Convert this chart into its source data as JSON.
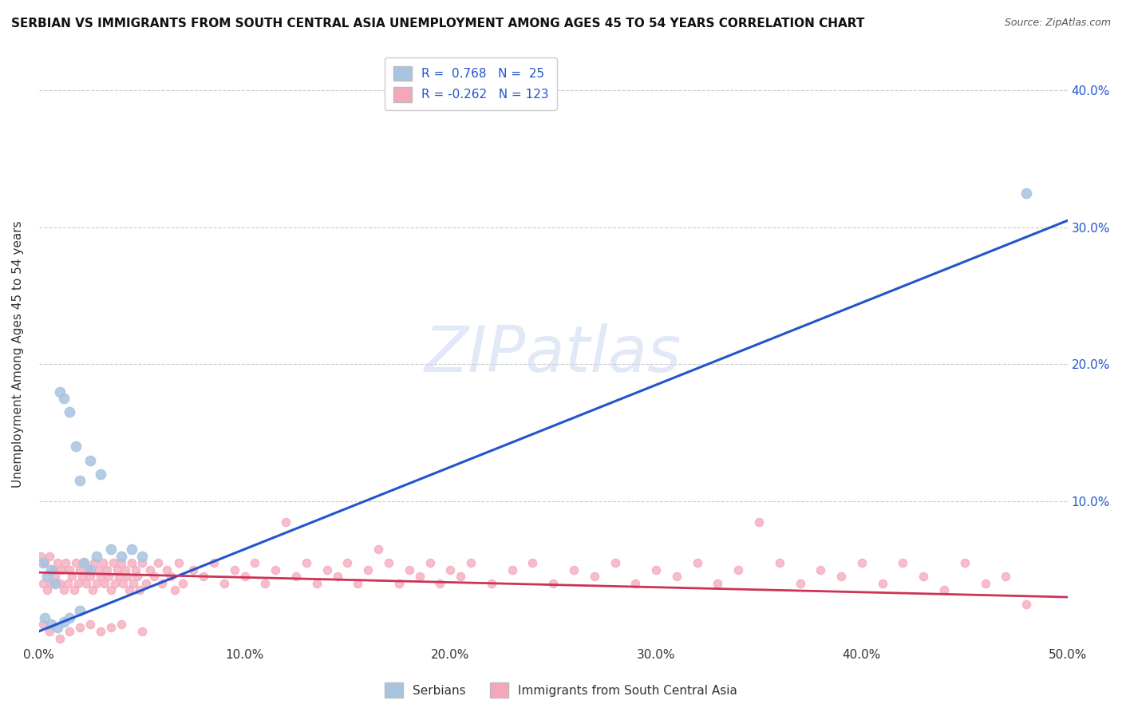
{
  "title": "SERBIAN VS IMMIGRANTS FROM SOUTH CENTRAL ASIA UNEMPLOYMENT AMONG AGES 45 TO 54 YEARS CORRELATION CHART",
  "source": "Source: ZipAtlas.com",
  "ylabel": "Unemployment Among Ages 45 to 54 years",
  "xlim": [
    0.0,
    0.5
  ],
  "ylim": [
    -0.005,
    0.42
  ],
  "xticks": [
    0.0,
    0.1,
    0.2,
    0.3,
    0.4,
    0.5
  ],
  "yticks": [
    0.1,
    0.2,
    0.3,
    0.4
  ],
  "ytick_labels": [
    "10.0%",
    "20.0%",
    "30.0%",
    "40.0%"
  ],
  "xtick_labels": [
    "0.0%",
    "10.0%",
    "20.0%",
    "30.0%",
    "40.0%",
    "50.0%"
  ],
  "watermark": "ZIPatlas",
  "serbian_color": "#a8c4e0",
  "immigrant_color": "#f4a7b9",
  "serbian_line_color": "#2255cc",
  "immigrant_line_color": "#cc3355",
  "serbian_line": [
    0.0,
    0.005,
    0.5,
    0.305
  ],
  "immigrant_line": [
    0.0,
    0.048,
    0.5,
    0.03
  ],
  "serbian_points": [
    [
      0.002,
      0.055
    ],
    [
      0.004,
      0.045
    ],
    [
      0.006,
      0.05
    ],
    [
      0.008,
      0.04
    ],
    [
      0.01,
      0.18
    ],
    [
      0.012,
      0.175
    ],
    [
      0.015,
      0.165
    ],
    [
      0.018,
      0.14
    ],
    [
      0.02,
      0.115
    ],
    [
      0.025,
      0.13
    ],
    [
      0.03,
      0.12
    ],
    [
      0.022,
      0.055
    ],
    [
      0.025,
      0.05
    ],
    [
      0.028,
      0.06
    ],
    [
      0.035,
      0.065
    ],
    [
      0.04,
      0.06
    ],
    [
      0.045,
      0.065
    ],
    [
      0.05,
      0.06
    ],
    [
      0.003,
      0.015
    ],
    [
      0.006,
      0.01
    ],
    [
      0.009,
      0.008
    ],
    [
      0.012,
      0.012
    ],
    [
      0.015,
      0.015
    ],
    [
      0.02,
      0.02
    ],
    [
      0.48,
      0.325
    ]
  ],
  "immigrant_points": [
    [
      0.001,
      0.06
    ],
    [
      0.002,
      0.04
    ],
    [
      0.003,
      0.055
    ],
    [
      0.004,
      0.035
    ],
    [
      0.005,
      0.06
    ],
    [
      0.006,
      0.04
    ],
    [
      0.007,
      0.05
    ],
    [
      0.008,
      0.045
    ],
    [
      0.009,
      0.055
    ],
    [
      0.01,
      0.04
    ],
    [
      0.011,
      0.05
    ],
    [
      0.012,
      0.035
    ],
    [
      0.013,
      0.055
    ],
    [
      0.014,
      0.04
    ],
    [
      0.015,
      0.05
    ],
    [
      0.016,
      0.045
    ],
    [
      0.017,
      0.035
    ],
    [
      0.018,
      0.055
    ],
    [
      0.019,
      0.04
    ],
    [
      0.02,
      0.05
    ],
    [
      0.021,
      0.045
    ],
    [
      0.022,
      0.055
    ],
    [
      0.023,
      0.04
    ],
    [
      0.024,
      0.05
    ],
    [
      0.025,
      0.045
    ],
    [
      0.026,
      0.035
    ],
    [
      0.027,
      0.055
    ],
    [
      0.028,
      0.04
    ],
    [
      0.029,
      0.05
    ],
    [
      0.03,
      0.045
    ],
    [
      0.031,
      0.055
    ],
    [
      0.032,
      0.04
    ],
    [
      0.033,
      0.05
    ],
    [
      0.034,
      0.045
    ],
    [
      0.035,
      0.035
    ],
    [
      0.036,
      0.055
    ],
    [
      0.037,
      0.04
    ],
    [
      0.038,
      0.05
    ],
    [
      0.039,
      0.045
    ],
    [
      0.04,
      0.055
    ],
    [
      0.041,
      0.04
    ],
    [
      0.042,
      0.05
    ],
    [
      0.043,
      0.045
    ],
    [
      0.044,
      0.035
    ],
    [
      0.045,
      0.055
    ],
    [
      0.046,
      0.04
    ],
    [
      0.047,
      0.05
    ],
    [
      0.048,
      0.045
    ],
    [
      0.049,
      0.035
    ],
    [
      0.05,
      0.055
    ],
    [
      0.052,
      0.04
    ],
    [
      0.054,
      0.05
    ],
    [
      0.056,
      0.045
    ],
    [
      0.058,
      0.055
    ],
    [
      0.06,
      0.04
    ],
    [
      0.062,
      0.05
    ],
    [
      0.064,
      0.045
    ],
    [
      0.066,
      0.035
    ],
    [
      0.068,
      0.055
    ],
    [
      0.07,
      0.04
    ],
    [
      0.075,
      0.05
    ],
    [
      0.08,
      0.045
    ],
    [
      0.085,
      0.055
    ],
    [
      0.09,
      0.04
    ],
    [
      0.095,
      0.05
    ],
    [
      0.1,
      0.045
    ],
    [
      0.105,
      0.055
    ],
    [
      0.11,
      0.04
    ],
    [
      0.115,
      0.05
    ],
    [
      0.12,
      0.085
    ],
    [
      0.125,
      0.045
    ],
    [
      0.13,
      0.055
    ],
    [
      0.135,
      0.04
    ],
    [
      0.14,
      0.05
    ],
    [
      0.145,
      0.045
    ],
    [
      0.15,
      0.055
    ],
    [
      0.155,
      0.04
    ],
    [
      0.16,
      0.05
    ],
    [
      0.165,
      0.065
    ],
    [
      0.17,
      0.055
    ],
    [
      0.175,
      0.04
    ],
    [
      0.18,
      0.05
    ],
    [
      0.185,
      0.045
    ],
    [
      0.19,
      0.055
    ],
    [
      0.195,
      0.04
    ],
    [
      0.2,
      0.05
    ],
    [
      0.205,
      0.045
    ],
    [
      0.21,
      0.055
    ],
    [
      0.22,
      0.04
    ],
    [
      0.23,
      0.05
    ],
    [
      0.24,
      0.055
    ],
    [
      0.25,
      0.04
    ],
    [
      0.26,
      0.05
    ],
    [
      0.27,
      0.045
    ],
    [
      0.28,
      0.055
    ],
    [
      0.29,
      0.04
    ],
    [
      0.3,
      0.05
    ],
    [
      0.31,
      0.045
    ],
    [
      0.32,
      0.055
    ],
    [
      0.33,
      0.04
    ],
    [
      0.34,
      0.05
    ],
    [
      0.35,
      0.085
    ],
    [
      0.36,
      0.055
    ],
    [
      0.37,
      0.04
    ],
    [
      0.38,
      0.05
    ],
    [
      0.39,
      0.045
    ],
    [
      0.4,
      0.055
    ],
    [
      0.41,
      0.04
    ],
    [
      0.42,
      0.055
    ],
    [
      0.43,
      0.045
    ],
    [
      0.44,
      0.035
    ],
    [
      0.45,
      0.055
    ],
    [
      0.46,
      0.04
    ],
    [
      0.47,
      0.045
    ],
    [
      0.002,
      0.01
    ],
    [
      0.005,
      0.005
    ],
    [
      0.01,
      0.0
    ],
    [
      0.015,
      0.005
    ],
    [
      0.02,
      0.008
    ],
    [
      0.025,
      0.01
    ],
    [
      0.03,
      0.005
    ],
    [
      0.035,
      0.008
    ],
    [
      0.04,
      0.01
    ],
    [
      0.05,
      0.005
    ],
    [
      0.48,
      0.025
    ]
  ]
}
